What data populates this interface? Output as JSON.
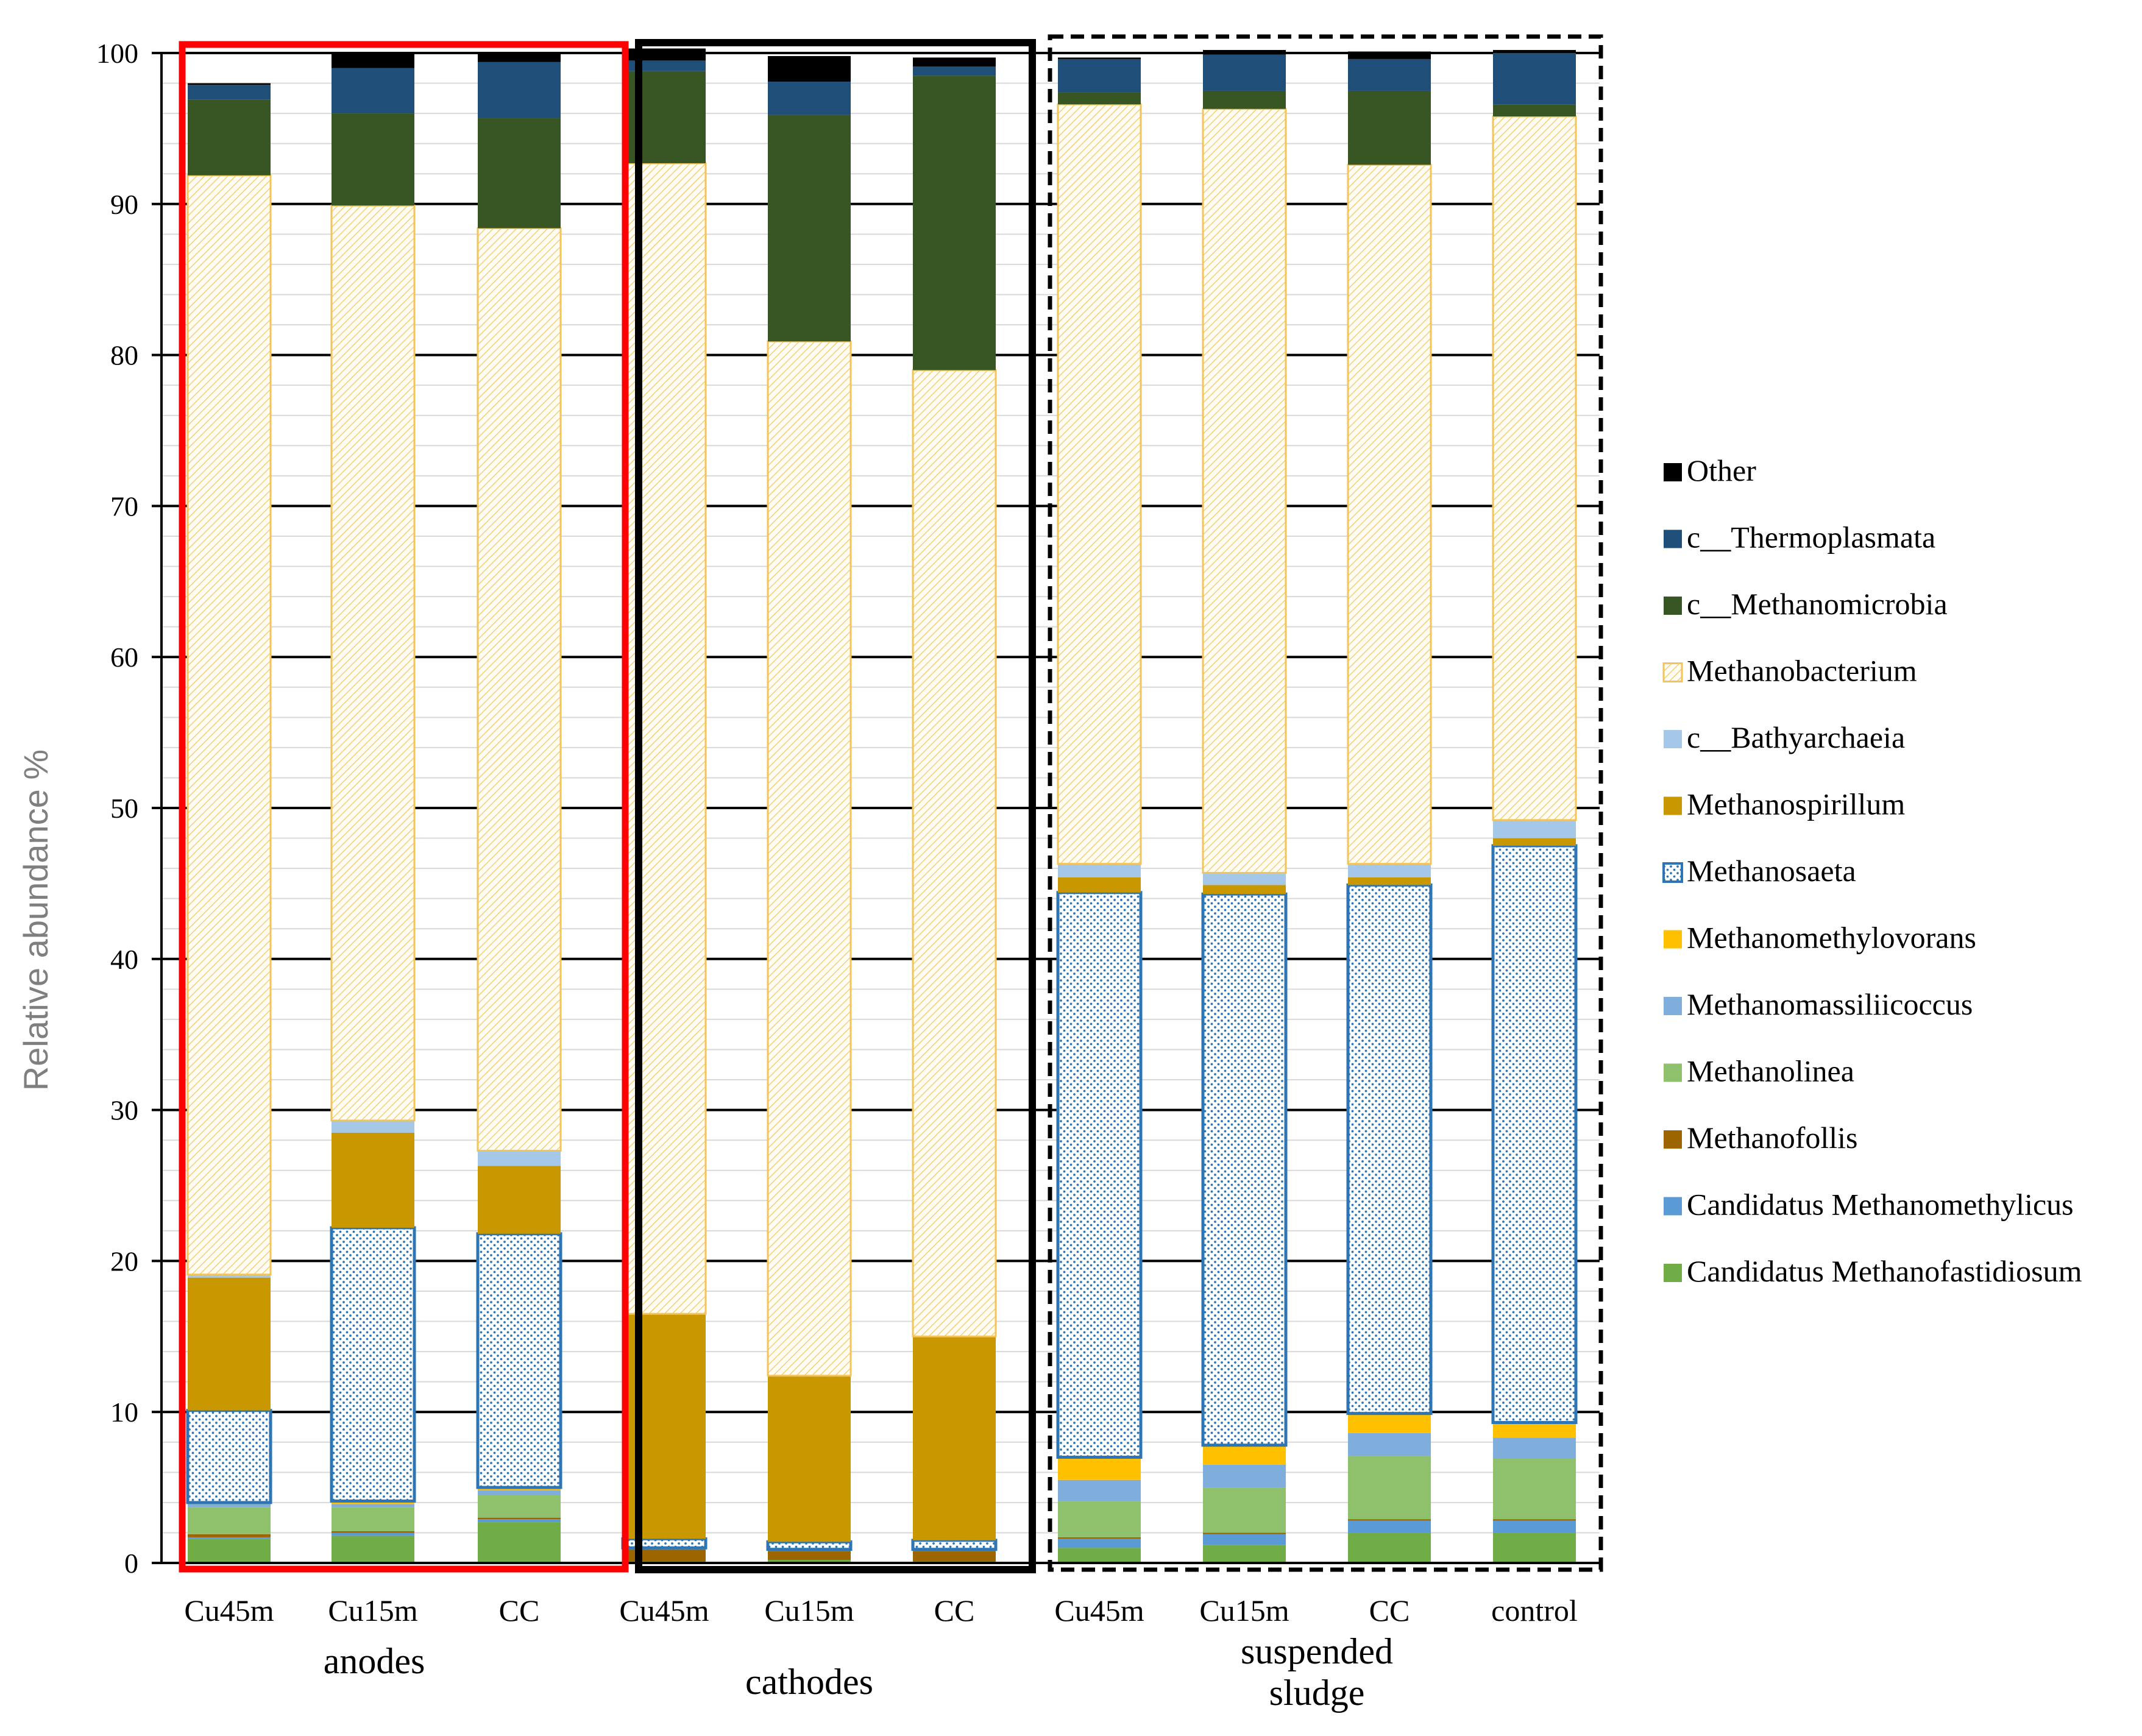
{
  "chart_data": {
    "type": "bar",
    "stacked": true,
    "ylabel": "Relative abundance %",
    "xlabel": "",
    "ylim": [
      0,
      100
    ],
    "yticks": [
      0,
      10,
      20,
      30,
      40,
      50,
      60,
      70,
      80,
      90,
      100
    ],
    "grid": true,
    "legend_position": "right",
    "categories": [
      "Cu45m",
      "Cu15m",
      "CC",
      "Cu45m",
      "Cu15m",
      "CC",
      "Cu45m",
      "Cu15m",
      "CC",
      "control"
    ],
    "groups": [
      {
        "label_lines": [
          "anodes"
        ],
        "indices": [
          0,
          1,
          2
        ],
        "box_style": "red-solid"
      },
      {
        "label_lines": [
          "cathodes"
        ],
        "indices": [
          3,
          4,
          5
        ],
        "box_style": "black-solid"
      },
      {
        "label_lines": [
          "suspended",
          "sludge"
        ],
        "indices": [
          6,
          7,
          8,
          9
        ],
        "box_style": "black-dashed"
      }
    ],
    "series": [
      {
        "name": "Candidatus Methanofastidiosum",
        "color": "#70AD47",
        "pattern": "solid",
        "values": [
          1.6,
          1.8,
          2.7,
          0.1,
          0.2,
          0.1,
          1.0,
          1.2,
          2.0,
          2.0
        ]
      },
      {
        "name": "Candidatus Methanomethylicus",
        "color": "#5B9BD5",
        "pattern": "solid",
        "values": [
          0.1,
          0.2,
          0.2,
          0.0,
          0.0,
          0.0,
          0.6,
          0.7,
          0.8,
          0.8
        ]
      },
      {
        "name": "Methanofollis",
        "color": "#9C6500",
        "pattern": "solid",
        "values": [
          0.2,
          0.1,
          0.1,
          0.8,
          0.6,
          0.7,
          0.1,
          0.1,
          0.1,
          0.1
        ]
      },
      {
        "name": "Methanolinea",
        "color": "#8FC06B",
        "pattern": "solid",
        "values": [
          1.8,
          1.6,
          1.5,
          0.1,
          0.1,
          0.1,
          2.4,
          3.0,
          4.2,
          4.0
        ]
      },
      {
        "name": "Methanomassiliicoccus",
        "color": "#7FAEDC",
        "pattern": "solid",
        "values": [
          0.2,
          0.2,
          0.3,
          0.0,
          0.0,
          0.0,
          1.4,
          1.5,
          1.5,
          1.4
        ]
      },
      {
        "name": "Methanomethylovorans",
        "color": "#FFC000",
        "pattern": "solid",
        "values": [
          0.1,
          0.2,
          0.2,
          0.0,
          0.0,
          0.0,
          1.5,
          1.3,
          1.3,
          1.0
        ]
      },
      {
        "name": "Methanosaeta",
        "color": "#2E75B6",
        "pattern": "dots",
        "values": [
          6.1,
          18.1,
          16.8,
          0.6,
          0.5,
          0.6,
          37.4,
          36.5,
          35.0,
          38.2
        ]
      },
      {
        "name": "Methanospirillum",
        "color": "#C99700",
        "pattern": "solid",
        "values": [
          8.8,
          6.3,
          4.5,
          14.9,
          11.0,
          13.5,
          1.0,
          0.6,
          0.5,
          0.5
        ]
      },
      {
        "name": "c__Bathyarchaeia",
        "color": "#A6C8E8",
        "pattern": "solid",
        "values": [
          0.2,
          0.8,
          1.0,
          0.0,
          0.0,
          0.0,
          0.9,
          0.8,
          0.9,
          1.2
        ]
      },
      {
        "name": "Methanobacterium",
        "color": "#FFD966",
        "pattern": "hatch",
        "values": [
          72.8,
          60.6,
          61.1,
          76.2,
          68.5,
          64.0,
          50.3,
          50.6,
          46.3,
          46.6
        ]
      },
      {
        "name": "c__Methanomicrobia",
        "color": "#375623",
        "pattern": "solid",
        "values": [
          5.0,
          6.1,
          7.3,
          6.1,
          15.0,
          19.5,
          0.8,
          1.2,
          4.9,
          0.8
        ]
      },
      {
        "name": "c__Thermoplasmata",
        "color": "#1F4E79",
        "pattern": "solid",
        "values": [
          1.0,
          3.0,
          3.7,
          0.7,
          2.2,
          0.6,
          2.2,
          2.4,
          2.1,
          3.4
        ]
      },
      {
        "name": "Other",
        "color": "#000000",
        "pattern": "solid",
        "values": [
          0.1,
          1.0,
          0.6,
          0.8,
          1.7,
          0.6,
          0.1,
          0.3,
          0.5,
          0.2
        ]
      }
    ]
  }
}
